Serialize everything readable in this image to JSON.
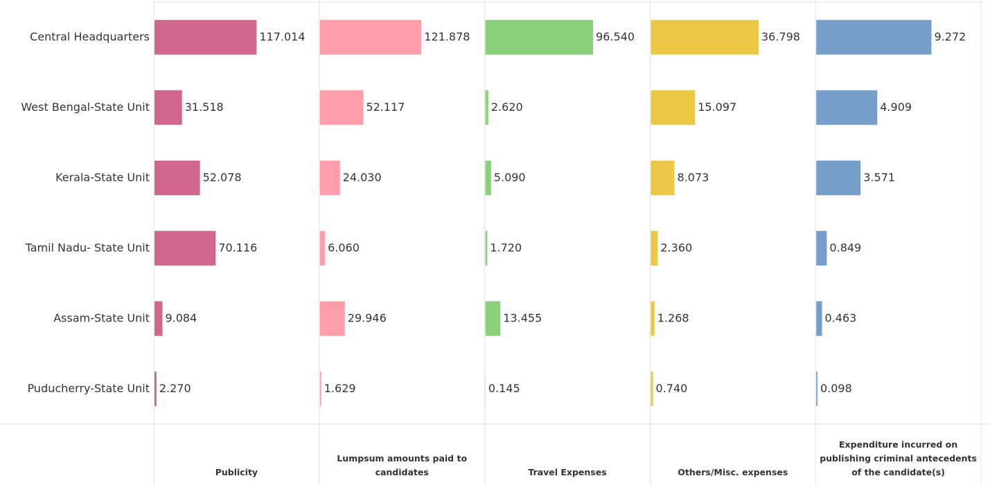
{
  "chart_data": {
    "type": "bar",
    "orientation": "horizontal",
    "categories": [
      "Central Headquarters",
      "West Bengal-State Unit",
      "Kerala-State Unit",
      "Tamil Nadu- State Unit",
      "Assam-State Unit",
      "Puducherry-State Unit"
    ],
    "series": [
      {
        "name": "Publicity",
        "color": "#d1668e",
        "xlim": [
          0,
          188
        ],
        "values": [
          117.014,
          31.518,
          52.078,
          70.116,
          9.084,
          2.27
        ],
        "value_labels": [
          "117.014",
          "31.518",
          "52.078",
          "70.116",
          "9.084",
          "2.270"
        ]
      },
      {
        "name": "Lumpsum amounts paid to candidates",
        "color": "#fe9ea8",
        "xlim": [
          0,
          197
        ],
        "values": [
          121.878,
          52.117,
          24.03,
          6.06,
          29.946,
          1.629
        ],
        "value_labels": [
          "121.878",
          "52.117",
          "24.030",
          "6.060",
          "29.946",
          "1.629"
        ]
      },
      {
        "name": "Travel Expenses",
        "color": "#8bd17a",
        "xlim": [
          0,
          147
        ],
        "values": [
          96.54,
          2.62,
          5.09,
          1.72,
          13.455,
          0.145
        ],
        "value_labels": [
          "96.540",
          "2.620",
          "5.090",
          "1.720",
          "13.455",
          "0.145"
        ]
      },
      {
        "name": "Others/Misc. expenses",
        "color": "#ecc846",
        "xlim": [
          0,
          56
        ],
        "values": [
          36.798,
          15.097,
          8.073,
          2.36,
          1.268,
          0.74
        ],
        "value_labels": [
          "36.798",
          "15.097",
          "8.073",
          "2.360",
          "1.268",
          "0.740"
        ]
      },
      {
        "name": "Expenditure incurred on publishing criminal antecedents of the candidate(s)",
        "color": "#759fc8",
        "xlim": [
          0,
          13.2
        ],
        "values": [
          9.272,
          4.909,
          3.571,
          0.849,
          0.463,
          0.098
        ],
        "value_labels": [
          "9.272",
          "4.909",
          "3.571",
          "0.849",
          "0.463",
          "0.098"
        ]
      }
    ]
  }
}
